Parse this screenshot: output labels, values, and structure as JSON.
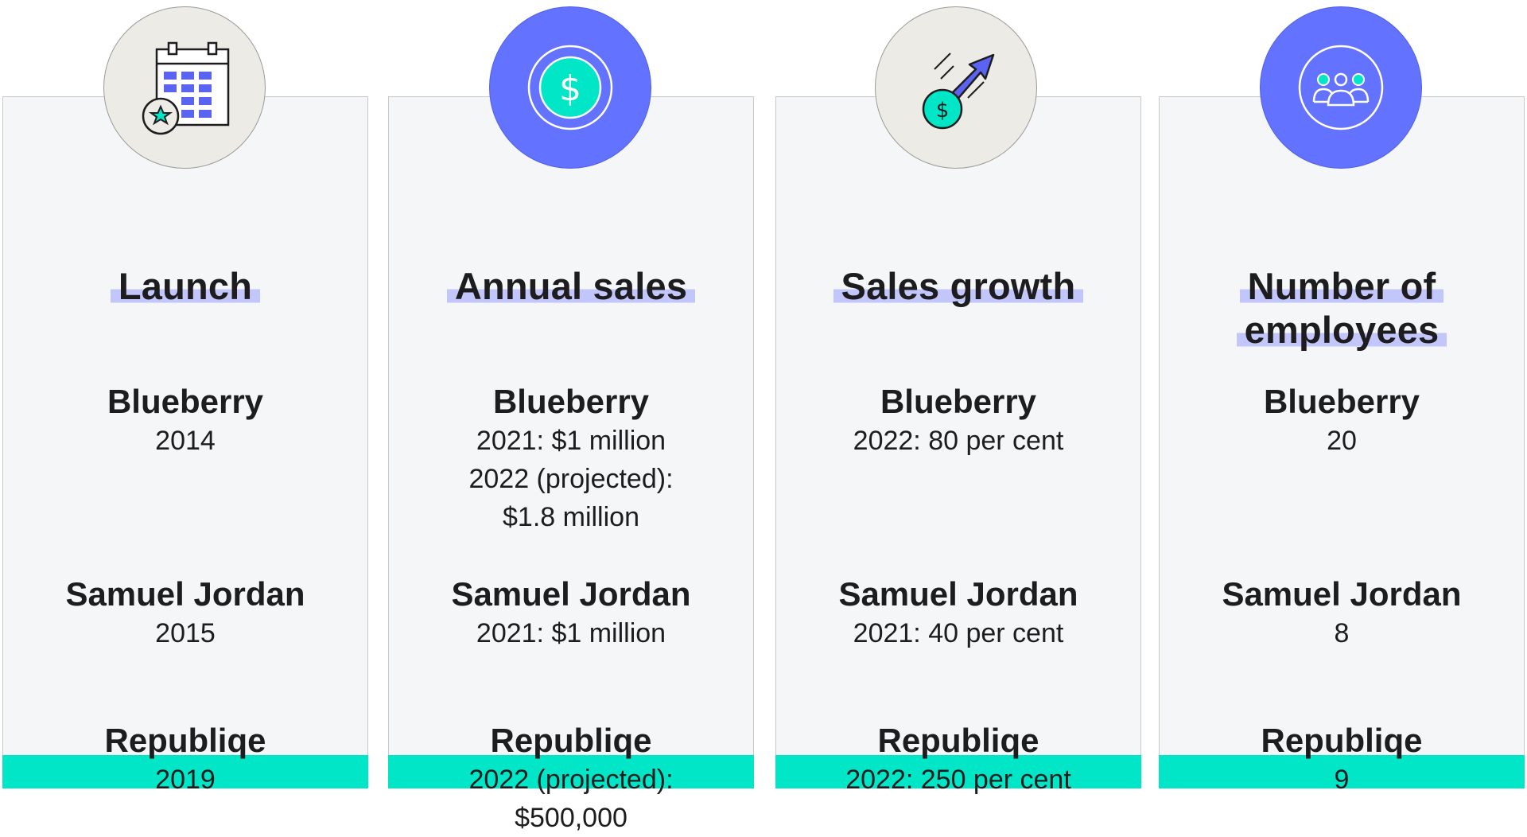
{
  "colors": {
    "card_background": "#f5f6f8",
    "accent_teal": "#00e6c6",
    "accent_blue": "#6372ff",
    "highlight_lavender": "#c3c6fb",
    "badge_beige": "#ecebe5"
  },
  "columns": [
    {
      "icon": "calendar-star-icon",
      "title_lines": [
        "Launch"
      ],
      "entries": [
        {
          "name": "Blueberry",
          "values": [
            "2014"
          ]
        },
        {
          "name": "Samuel Jordan",
          "values": [
            "2015"
          ]
        },
        {
          "name": "Republiqe",
          "values": [
            "2019"
          ]
        }
      ]
    },
    {
      "icon": "dollar-coin-icon",
      "title_lines": [
        "Annual sales"
      ],
      "entries": [
        {
          "name": "Blueberry",
          "values": [
            "2021: $1 million",
            "2022 (projected):",
            "$1.8 million"
          ]
        },
        {
          "name": "Samuel Jordan",
          "values": [
            "2021: $1 million"
          ]
        },
        {
          "name": "Republiqe",
          "values": [
            "2022 (projected):",
            "$500,000"
          ]
        }
      ]
    },
    {
      "icon": "growth-arrow-icon",
      "title_lines": [
        "Sales growth"
      ],
      "entries": [
        {
          "name": "Blueberry",
          "values": [
            "2022: 80 per cent"
          ]
        },
        {
          "name": "Samuel Jordan",
          "values": [
            "2021: 40 per cent"
          ]
        },
        {
          "name": "Republiqe",
          "values": [
            "2022: 250 per cent"
          ]
        }
      ]
    },
    {
      "icon": "people-group-icon",
      "title_lines": [
        "Number of",
        "employees"
      ],
      "entries": [
        {
          "name": "Blueberry",
          "values": [
            "20"
          ]
        },
        {
          "name": "Samuel Jordan",
          "values": [
            "8"
          ]
        },
        {
          "name": "Republiqe",
          "values": [
            "9"
          ]
        }
      ]
    }
  ]
}
